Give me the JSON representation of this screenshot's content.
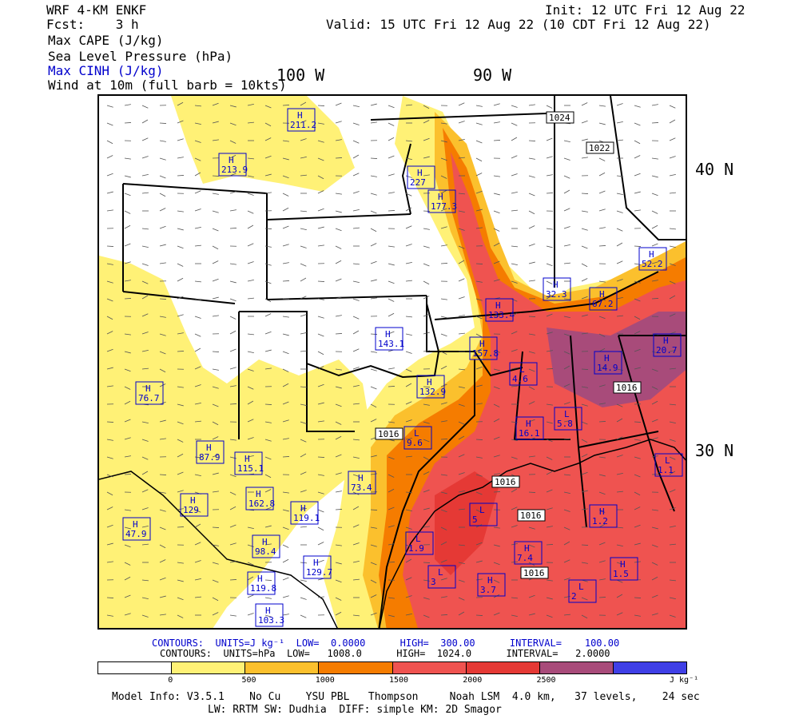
{
  "header": {
    "model": "WRF 4-KM ENKF",
    "fcst": "Fcst:    3 h",
    "init": "Init: 12 UTC Fri 12 Aug 22",
    "valid": "Valid: 15 UTC Fri 12 Aug 22 (10 CDT Fri 12 Aug 22)",
    "fields": [
      "Max CAPE (J/kg)",
      "Sea Level Pressure (hPa)",
      "Max CINH (J/kg)",
      "Wind at 10m (full barb = 10kts)"
    ]
  },
  "axes": {
    "lon_100": "100 W",
    "lon_90": "90 W",
    "lat_40": "40 N",
    "lat_30": "30 N"
  },
  "footer": {
    "cinh_contours": "CONTOURS:  UNITS=J kg⁻¹  LOW=  0.0000      HIGH=  300.00      INTERVAL=    100.00",
    "slp_contours": "CONTOURS:  UNITS=hPa  LOW=   1008.0      HIGH=  1024.0      INTERVAL=   2.0000",
    "model_info": "Model Info: V3.5.1    No Cu    YSU PBL   Thompson     Noah LSM  4.0 km,   37 levels,    24 sec",
    "model_info2": "LW: RRTM SW: Dudhia  DIFF: simple KM: 2D Smagor"
  },
  "colorbar": {
    "colors": [
      "#ffffff",
      "#fff176",
      "#fbc02d",
      "#f57c00",
      "#ef5350",
      "#e53935",
      "#a84b7a",
      "#3f3fe6"
    ],
    "ticks": [
      "0",
      "500",
      "1000",
      "1500",
      "2000",
      "2500"
    ],
    "unit": "J kg⁻¹"
  },
  "cinh_labels": [
    {
      "type": "H",
      "value": "211.2"
    },
    {
      "type": "H",
      "value": "213.9"
    },
    {
      "type": "H",
      "value": "227"
    },
    {
      "type": "H",
      "value": "177.3"
    },
    {
      "type": "H",
      "value": "52.2"
    },
    {
      "type": "H",
      "value": "32.3"
    },
    {
      "type": "H",
      "value": "67.2"
    },
    {
      "type": "H",
      "value": "133.4"
    },
    {
      "type": "H",
      "value": "143.1"
    },
    {
      "type": "H",
      "value": "157.8"
    },
    {
      "type": "H",
      "value": "20.7"
    },
    {
      "type": "H",
      "value": "14.9"
    },
    {
      "type": "H",
      "value": "76.7"
    },
    {
      "type": "H",
      "value": "132.9"
    },
    {
      "type": "H",
      "value": "16.1"
    },
    {
      "type": "L",
      "value": "5.8"
    },
    {
      "type": "L",
      "value": "9.6"
    },
    {
      "type": "H",
      "value": "87.9"
    },
    {
      "type": "H",
      "value": "115.1"
    },
    {
      "type": "H",
      "value": "73.4"
    },
    {
      "type": "H",
      "value": "162.8"
    },
    {
      "type": "H",
      "value": "119.1"
    },
    {
      "type": "H",
      "value": "129"
    },
    {
      "type": "H",
      "value": "47.9"
    },
    {
      "type": "H",
      "value": "98.4"
    },
    {
      "type": "H",
      "value": "129.7"
    },
    {
      "type": "H",
      "value": "119.8"
    },
    {
      "type": "H",
      "value": "103.3"
    },
    {
      "type": "L",
      "value": "1.9"
    },
    {
      "type": "L",
      "value": "5"
    },
    {
      "type": "H",
      "value": "7.4"
    },
    {
      "type": "H",
      "value": "3.7"
    },
    {
      "type": "L",
      "value": "3"
    },
    {
      "type": "H",
      "value": "1.2"
    },
    {
      "type": "H",
      "value": "1.5"
    },
    {
      "type": "L",
      "value": "2"
    },
    {
      "type": "L",
      "value": "1.1"
    },
    {
      "type": "L",
      "value": "4.6"
    }
  ],
  "slp_labels": [
    "1024",
    "1022",
    "1016",
    "1016",
    "1016",
    "1016",
    "1016"
  ]
}
